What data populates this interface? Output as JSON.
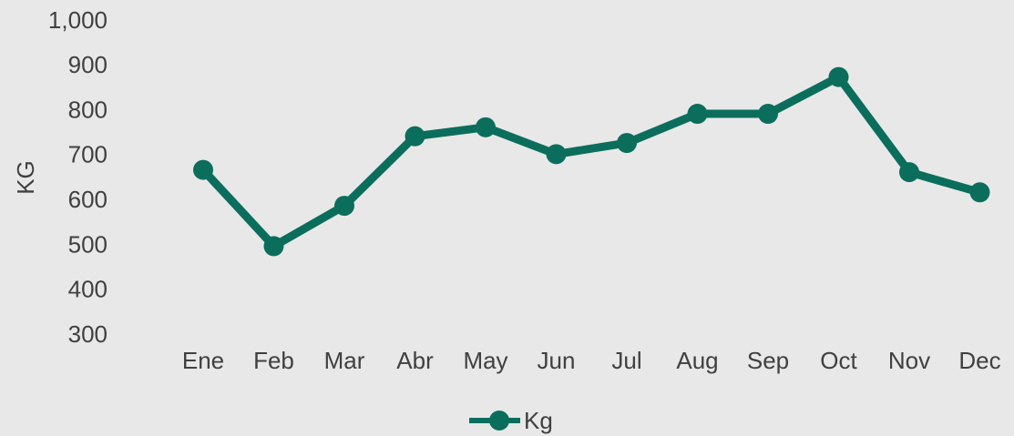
{
  "chart_data": {
    "type": "line",
    "ylabel": "KG",
    "categories": [
      "Ene",
      "Feb",
      "Mar",
      "Abr",
      "May",
      "Jun",
      "Jul",
      "Aug",
      "Sep",
      "Oct",
      "Nov",
      "Dec"
    ],
    "series": [
      {
        "name": "Kg",
        "color": "#0b6e5c",
        "values": [
          670,
          500,
          590,
          745,
          765,
          705,
          730,
          795,
          795,
          877,
          665,
          620
        ]
      }
    ],
    "ylim": [
      300,
      1000
    ],
    "yticks": [
      300,
      400,
      500,
      600,
      700,
      800,
      900,
      {
        "value": 1000,
        "label": "1,000"
      }
    ],
    "grid": false,
    "legend": "bottom"
  }
}
